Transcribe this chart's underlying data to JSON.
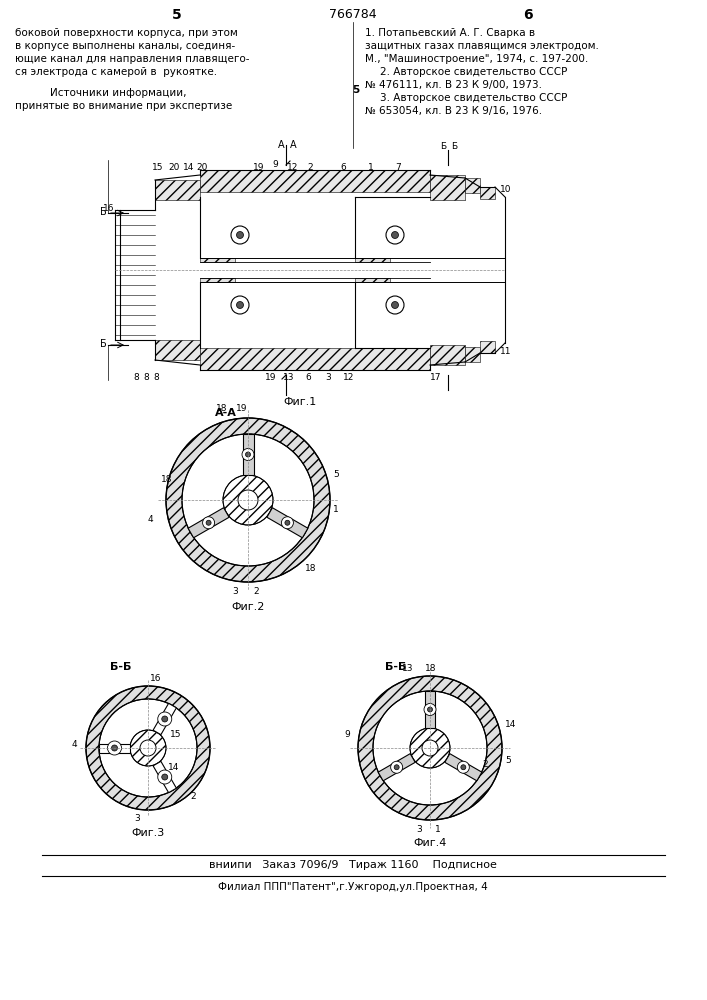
{
  "page_width": 7.07,
  "page_height": 10.0,
  "bg_color": "#ffffff",
  "page_num_left": "5",
  "page_num_center": "766784",
  "page_num_right": "6",
  "left_text": [
    "боковой поверхности корпуса, при этом",
    "в корпусе выполнены каналы, соединя-",
    "ющие канал для направления плавящего-",
    "ся электрода с камерой в  рукоятке."
  ],
  "left_text2": [
    "Источники информации,",
    "принятые во внимание при экспертизе"
  ],
  "right_text": [
    "1. Потапьевский А. Г. Сварка в",
    "защитных газах плавящимся электродом.",
    "М., \"Машиностроение\", 1974, с. 197-200.",
    "2. Авторское свидетельство СССР",
    "№ 476111, кл. В 23 К 9/00, 1973.",
    "3. Авторское свидетельство СССР",
    "№ 653054, кл. В 23 К 9/16, 1976."
  ],
  "footer_line1": "вниипи   Заказ 7096/9   Тираж 1160    Подписное",
  "footer_line2": "Филиал ППП\"Патент\",г.Ужгород,ул.Проектная, 4",
  "fig1_caption": "Фиг.1",
  "fig2_caption": "Фиг.2",
  "fig3_caption": "Фиг.3",
  "fig4_caption": "Фиг.4",
  "fig2_label": "А-А",
  "fig3_label": "Б-Б",
  "fig4_label": "Б-Б"
}
